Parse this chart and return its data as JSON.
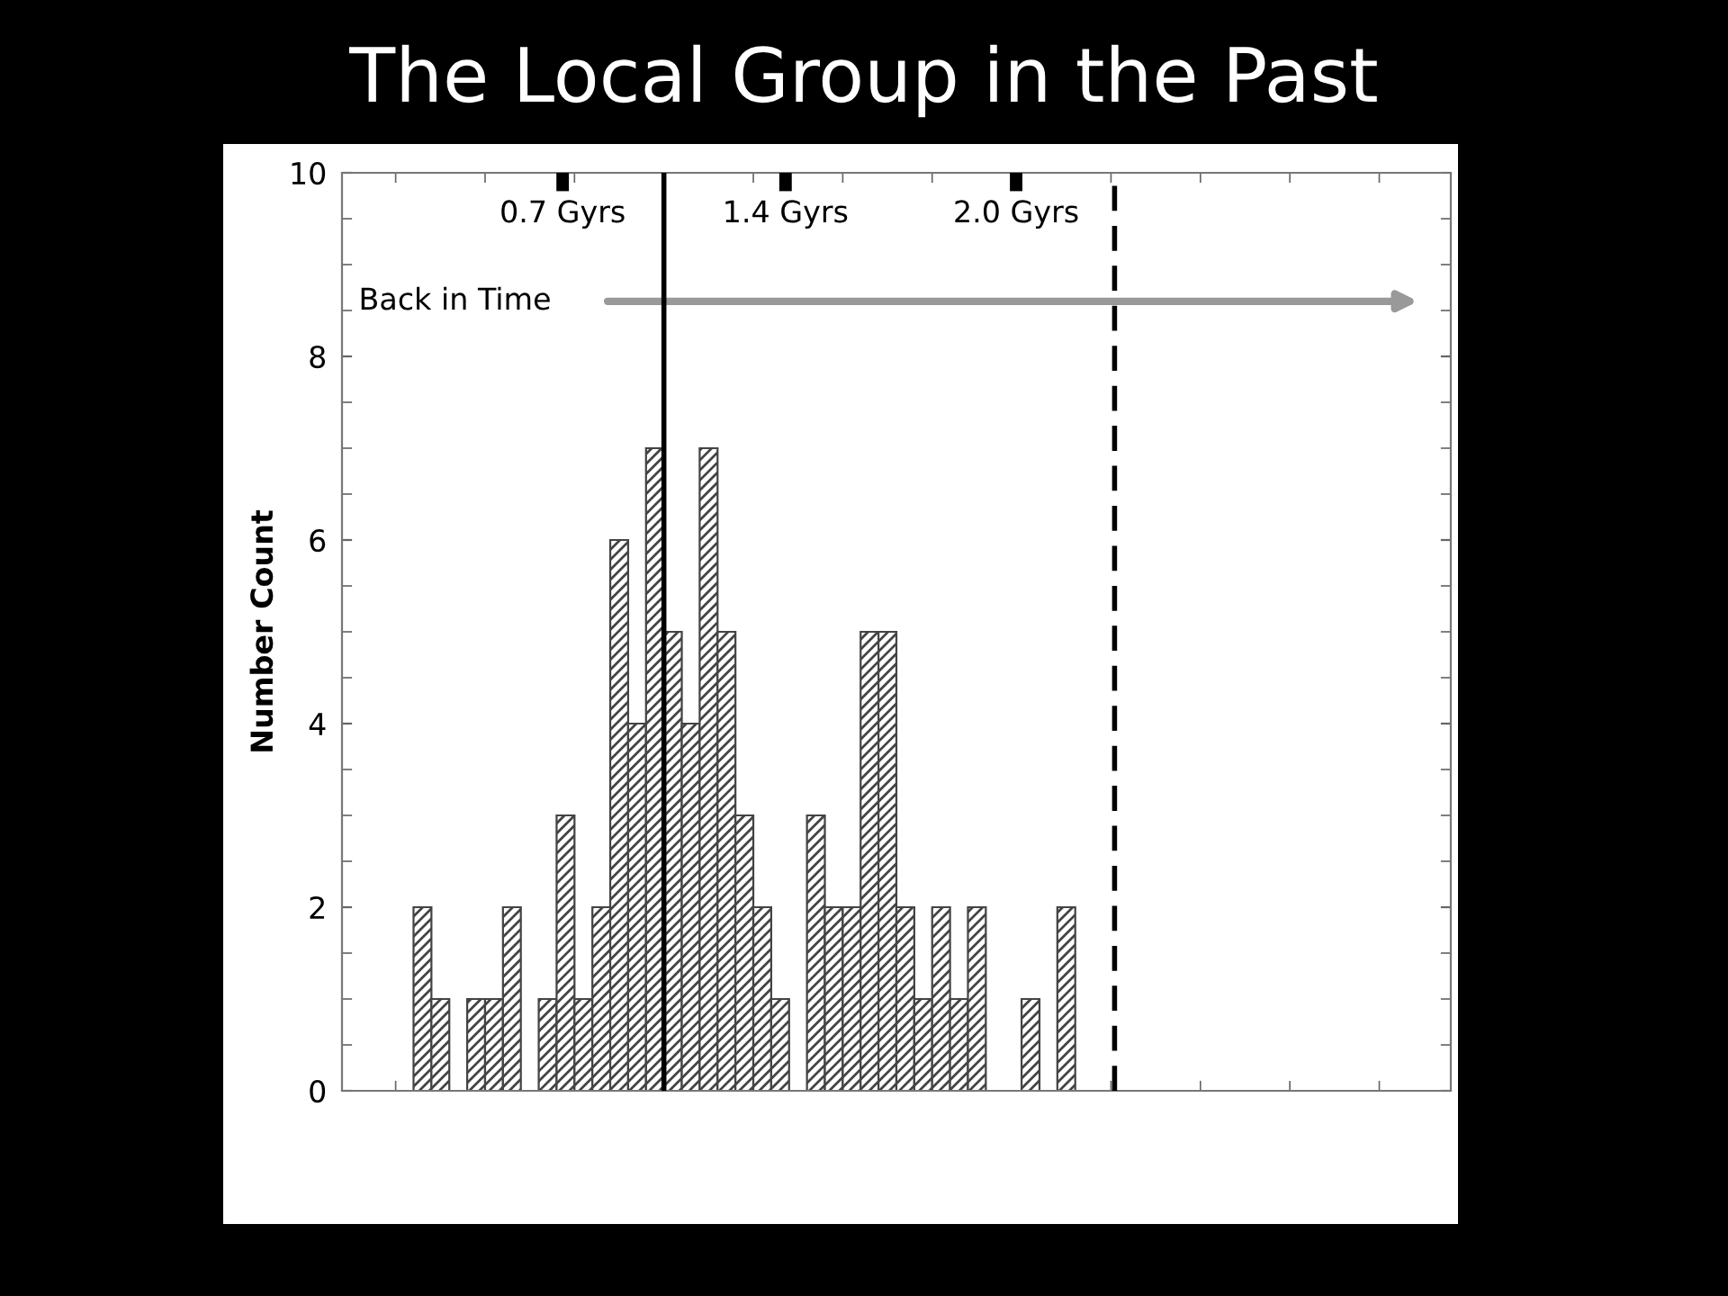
{
  "chart_data": {
    "type": "bar",
    "title": "The Local Group in the Past",
    "ylabel": "Number Count",
    "categories": [
      null,
      null,
      null,
      null,
      null,
      null,
      null,
      null,
      null,
      null,
      null,
      null,
      null,
      null,
      null,
      null,
      null,
      null,
      null,
      null,
      null,
      null,
      null,
      null,
      null,
      null,
      null,
      null,
      null,
      null,
      null,
      null,
      null,
      null,
      null,
      null,
      null,
      null,
      null,
      null,
      null,
      null,
      null,
      null,
      null,
      null,
      null,
      null,
      null,
      null,
      null,
      null,
      null,
      null,
      null,
      null,
      null,
      null,
      null,
      null,
      null,
      null
    ],
    "values": [
      null,
      null,
      null,
      null,
      2,
      1,
      0,
      1,
      1,
      2,
      0,
      1,
      3,
      1,
      2,
      6,
      4,
      7,
      5,
      4,
      7,
      5,
      3,
      2,
      1,
      0,
      3,
      2,
      2,
      5,
      5,
      2,
      1,
      2,
      1,
      2,
      0,
      0,
      1,
      0,
      2,
      null,
      null,
      null,
      null,
      null,
      null,
      null,
      null,
      null,
      null,
      null,
      null,
      null,
      null,
      null,
      null,
      null,
      null,
      null,
      null,
      null
    ],
    "color": "#444444",
    "ylim": [
      0,
      10
    ],
    "yticks": [
      0,
      2,
      4,
      6,
      8,
      10
    ],
    "tick_labels": "y",
    "annotations": [
      "0.7 Gyrs",
      "1.4 Gyrs",
      "2.0 Gyrs",
      "Back in Time"
    ],
    "grid": false
  }
}
